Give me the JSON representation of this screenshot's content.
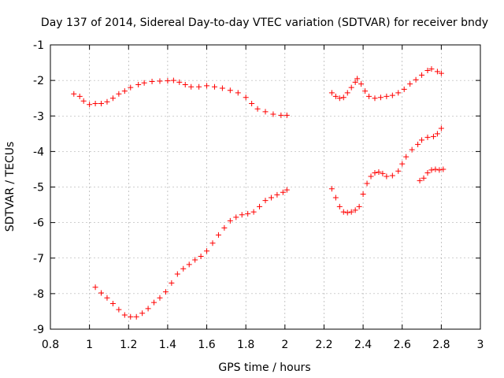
{
  "chart_data": {
    "type": "scatter",
    "title": "Day 137 of 2014, Sidereal Day-to-day VTEC variation (SDTVAR) for receiver bndy",
    "xlabel": "GPS time / hours",
    "ylabel": "SDTVAR / TECUs",
    "xlim": [
      0.8,
      3.0
    ],
    "ylim": [
      -9,
      -1
    ],
    "xticks": [
      0.8,
      1.0,
      1.2,
      1.4,
      1.6,
      1.8,
      2.0,
      2.2,
      2.4,
      2.6,
      2.8,
      3.0
    ],
    "xtick_labels": [
      "0.8",
      "1",
      "1.2",
      "1.4",
      "1.6",
      "1.8",
      "2",
      "2.2",
      "2.4",
      "2.6",
      "2.8",
      "3"
    ],
    "yticks": [
      -9,
      -8,
      -7,
      -6,
      -5,
      -4,
      -3,
      -2,
      -1
    ],
    "ytick_labels": [
      "-9",
      "-8",
      "-7",
      "-6",
      "-5",
      "-4",
      "-3",
      "-2",
      "-1"
    ],
    "grid": true,
    "marker": "plus",
    "marker_color": "#ff0000",
    "series": [
      {
        "points": [
          [
            0.92,
            -2.38
          ],
          [
            0.95,
            -2.45
          ],
          [
            0.97,
            -2.58
          ],
          [
            1.0,
            -2.68
          ],
          [
            1.03,
            -2.65
          ],
          [
            1.06,
            -2.65
          ],
          [
            1.09,
            -2.6
          ],
          [
            1.12,
            -2.5
          ],
          [
            1.15,
            -2.38
          ],
          [
            1.18,
            -2.3
          ],
          [
            1.21,
            -2.2
          ],
          [
            1.25,
            -2.12
          ],
          [
            1.28,
            -2.07
          ],
          [
            1.32,
            -2.03
          ],
          [
            1.36,
            -2.02
          ],
          [
            1.4,
            -2.01
          ],
          [
            1.43,
            -2.0
          ],
          [
            1.46,
            -2.05
          ],
          [
            1.49,
            -2.12
          ],
          [
            1.52,
            -2.18
          ],
          [
            1.56,
            -2.18
          ],
          [
            1.6,
            -2.15
          ],
          [
            1.64,
            -2.18
          ],
          [
            1.68,
            -2.22
          ],
          [
            1.72,
            -2.28
          ],
          [
            1.76,
            -2.35
          ],
          [
            1.8,
            -2.48
          ],
          [
            1.83,
            -2.65
          ],
          [
            1.86,
            -2.8
          ],
          [
            1.9,
            -2.88
          ],
          [
            1.94,
            -2.95
          ],
          [
            1.98,
            -2.98
          ],
          [
            2.01,
            -2.98
          ]
        ]
      },
      {
        "points": [
          [
            1.03,
            -7.82
          ],
          [
            1.06,
            -7.98
          ],
          [
            1.09,
            -8.12
          ],
          [
            1.12,
            -8.28
          ],
          [
            1.15,
            -8.45
          ],
          [
            1.18,
            -8.6
          ],
          [
            1.21,
            -8.65
          ],
          [
            1.24,
            -8.65
          ],
          [
            1.27,
            -8.55
          ],
          [
            1.3,
            -8.42
          ],
          [
            1.33,
            -8.25
          ],
          [
            1.36,
            -8.12
          ],
          [
            1.39,
            -7.95
          ],
          [
            1.42,
            -7.7
          ],
          [
            1.45,
            -7.45
          ],
          [
            1.48,
            -7.3
          ],
          [
            1.51,
            -7.18
          ],
          [
            1.54,
            -7.05
          ],
          [
            1.57,
            -6.95
          ],
          [
            1.6,
            -6.8
          ],
          [
            1.63,
            -6.58
          ],
          [
            1.66,
            -6.35
          ],
          [
            1.69,
            -6.15
          ],
          [
            1.72,
            -5.95
          ],
          [
            1.75,
            -5.85
          ],
          [
            1.78,
            -5.78
          ],
          [
            1.81,
            -5.75
          ],
          [
            1.84,
            -5.7
          ],
          [
            1.87,
            -5.55
          ],
          [
            1.9,
            -5.38
          ],
          [
            1.93,
            -5.3
          ],
          [
            1.96,
            -5.22
          ],
          [
            1.99,
            -5.15
          ],
          [
            2.01,
            -5.08
          ]
        ]
      },
      {
        "points": [
          [
            2.24,
            -2.35
          ],
          [
            2.26,
            -2.45
          ],
          [
            2.28,
            -2.5
          ],
          [
            2.3,
            -2.48
          ],
          [
            2.32,
            -2.35
          ],
          [
            2.34,
            -2.2
          ],
          [
            2.36,
            -2.05
          ],
          [
            2.37,
            -1.95
          ],
          [
            2.39,
            -2.1
          ],
          [
            2.41,
            -2.3
          ],
          [
            2.43,
            -2.45
          ],
          [
            2.46,
            -2.5
          ],
          [
            2.49,
            -2.48
          ],
          [
            2.52,
            -2.45
          ],
          [
            2.55,
            -2.42
          ],
          [
            2.58,
            -2.35
          ],
          [
            2.61,
            -2.25
          ],
          [
            2.64,
            -2.1
          ],
          [
            2.67,
            -1.98
          ],
          [
            2.7,
            -1.85
          ],
          [
            2.73,
            -1.72
          ],
          [
            2.75,
            -1.68
          ],
          [
            2.78,
            -1.75
          ],
          [
            2.8,
            -1.8
          ]
        ]
      },
      {
        "points": [
          [
            2.24,
            -5.05
          ],
          [
            2.26,
            -5.3
          ],
          [
            2.28,
            -5.55
          ],
          [
            2.3,
            -5.7
          ],
          [
            2.32,
            -5.72
          ],
          [
            2.34,
            -5.7
          ],
          [
            2.36,
            -5.65
          ],
          [
            2.38,
            -5.55
          ],
          [
            2.4,
            -5.2
          ],
          [
            2.42,
            -4.9
          ],
          [
            2.44,
            -4.7
          ],
          [
            2.46,
            -4.6
          ],
          [
            2.48,
            -4.58
          ],
          [
            2.5,
            -4.62
          ],
          [
            2.52,
            -4.7
          ],
          [
            2.55,
            -4.68
          ],
          [
            2.58,
            -4.55
          ],
          [
            2.6,
            -4.35
          ],
          [
            2.62,
            -4.15
          ],
          [
            2.65,
            -3.95
          ],
          [
            2.68,
            -3.8
          ],
          [
            2.7,
            -3.68
          ],
          [
            2.73,
            -3.6
          ],
          [
            2.76,
            -3.58
          ],
          [
            2.78,
            -3.5
          ],
          [
            2.8,
            -3.35
          ]
        ]
      },
      {
        "points": [
          [
            2.69,
            -4.82
          ],
          [
            2.71,
            -4.75
          ],
          [
            2.73,
            -4.6
          ],
          [
            2.75,
            -4.52
          ],
          [
            2.77,
            -4.5
          ],
          [
            2.79,
            -4.52
          ],
          [
            2.81,
            -4.5
          ]
        ]
      }
    ]
  }
}
